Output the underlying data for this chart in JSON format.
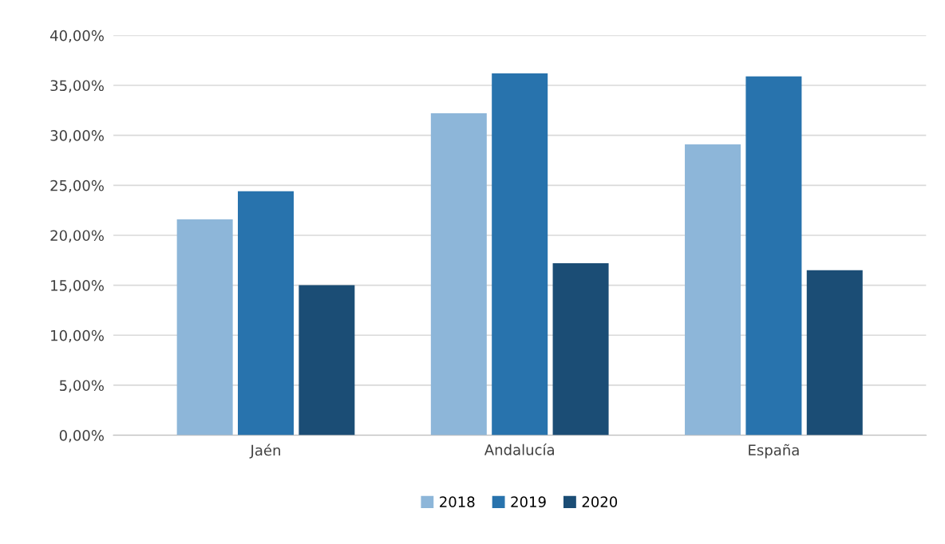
{
  "chart_data": {
    "type": "bar",
    "categories": [
      "Jaén",
      "Andalucía",
      "España"
    ],
    "series": [
      {
        "name": "2018",
        "color": "#8db6d9",
        "values": [
          21.6,
          32.2,
          29.1
        ]
      },
      {
        "name": "2019",
        "color": "#2873ad",
        "values": [
          24.4,
          36.2,
          35.9
        ]
      },
      {
        "name": "2020",
        "color": "#1b4d75",
        "values": [
          15.0,
          17.2,
          16.5
        ]
      }
    ],
    "ylim": [
      0,
      40
    ],
    "yticks": [
      {
        "value": 0,
        "label": "0,00%"
      },
      {
        "value": 5,
        "label": "5,00%"
      },
      {
        "value": 10,
        "label": "10,00%"
      },
      {
        "value": 15,
        "label": "15,00%"
      },
      {
        "value": 20,
        "label": "20,00%"
      },
      {
        "value": 25,
        "label": "25,00%"
      },
      {
        "value": 30,
        "label": "30,00%"
      },
      {
        "value": 35,
        "label": "35,00%"
      },
      {
        "value": 40,
        "label": "40,00%"
      }
    ],
    "grid": "y",
    "legend": "bottom"
  }
}
